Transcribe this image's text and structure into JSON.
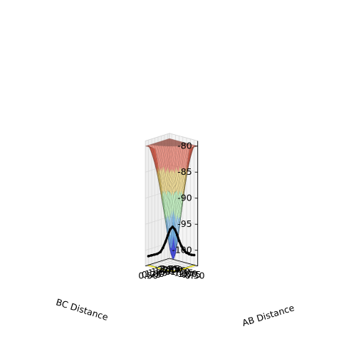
{
  "chart_data": {
    "type": "surface3d",
    "title": "",
    "xlabel": "AB Distance",
    "ylabel": "BC Distance",
    "zlabel": "",
    "x_ticks": [
      "0.50",
      "0.75",
      "1.00",
      "1.25",
      "1.50",
      "1.75",
      "2.00",
      "2.25"
    ],
    "y_ticks": [
      "0.50",
      "0.75",
      "1.00",
      "1.25",
      "1.50",
      "1.75",
      "2.00",
      "2.25"
    ],
    "z_ticks": [
      "-80",
      "-85",
      "-90",
      "-95",
      "-100"
    ],
    "zlim": [
      -103,
      -79
    ],
    "xlim": [
      0.5,
      2.4
    ],
    "ylim": [
      0.5,
      2.4
    ],
    "surface": {
      "description_colormap": "jet",
      "band_colors": [
        "#0b17ff",
        "#55b6ff",
        "#9bff9a",
        "#ffd33a",
        "#ff3a1a"
      ],
      "clipped_at": -80,
      "alpha": 0.45
    },
    "contour_colors": [
      "#440154",
      "#3b528b",
      "#21918c",
      "#5ec962",
      "#fde725"
    ],
    "trajectory": {
      "color": "#000000",
      "path_points": [
        [
          2.4,
          0.74,
          -101.3
        ],
        [
          2.2,
          0.74,
          -101.0
        ],
        [
          2.0,
          0.74,
          -100.7
        ],
        [
          1.8,
          0.74,
          -100.4
        ],
        [
          1.6,
          0.75,
          -99.9
        ],
        [
          1.45,
          0.77,
          -99.0
        ],
        [
          1.3,
          0.81,
          -97.7
        ],
        [
          1.2,
          0.86,
          -96.5
        ],
        [
          1.1,
          0.93,
          -95.3
        ],
        [
          1.0,
          1.0,
          -94.8
        ],
        [
          0.93,
          1.1,
          -95.3
        ],
        [
          0.86,
          1.2,
          -96.4
        ],
        [
          0.81,
          1.3,
          -97.6
        ],
        [
          0.78,
          1.45,
          -98.7
        ],
        [
          0.76,
          1.6,
          -99.5
        ],
        [
          0.75,
          1.8,
          -100.2
        ],
        [
          0.74,
          2.0,
          -100.6
        ],
        [
          0.74,
          2.2,
          -100.9
        ],
        [
          0.74,
          2.4,
          -101.1
        ]
      ]
    }
  }
}
